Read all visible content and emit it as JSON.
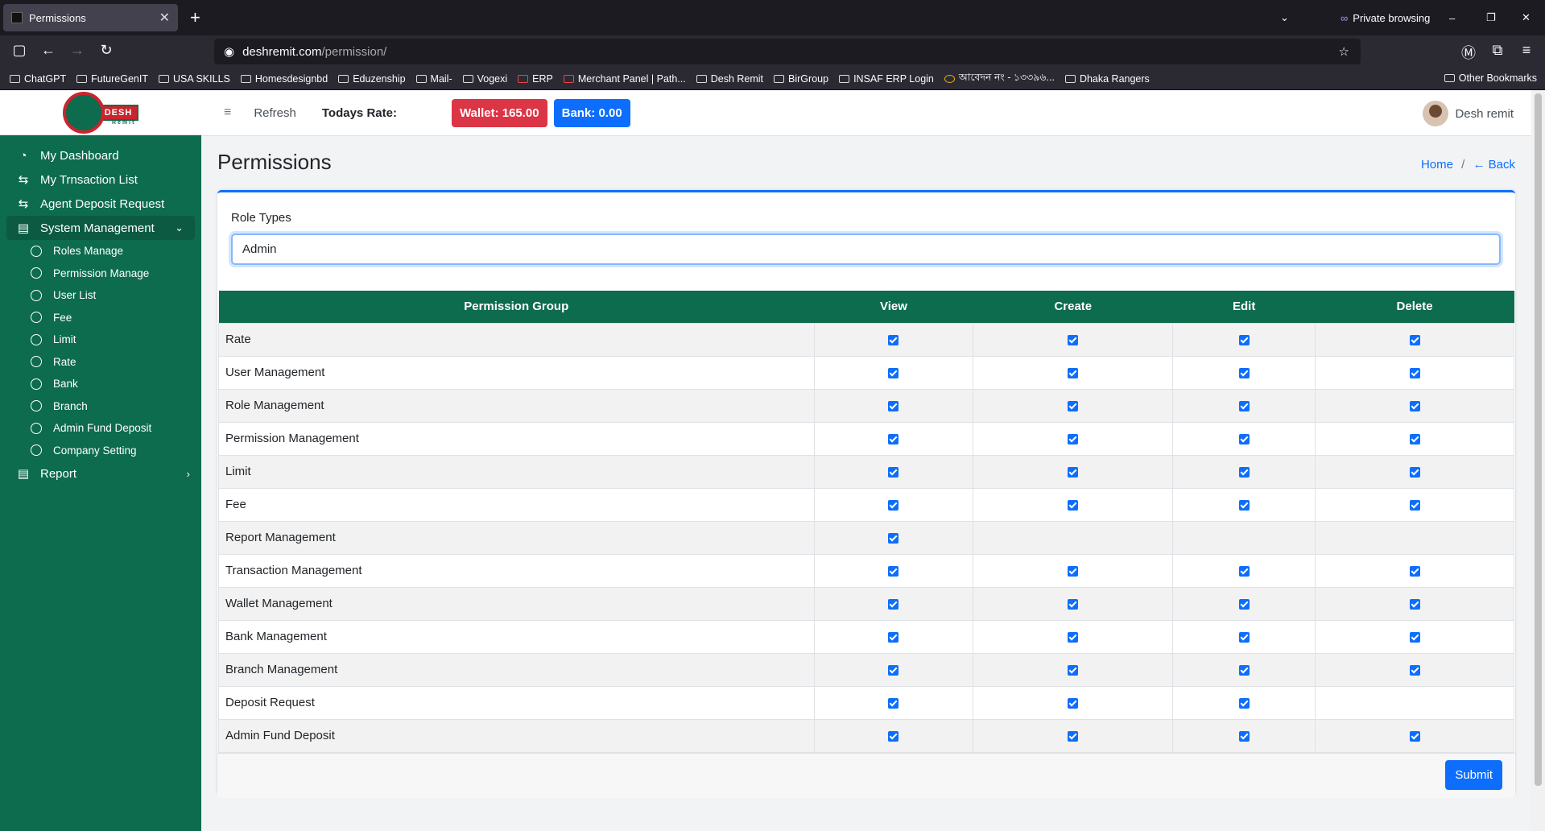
{
  "browser": {
    "tab_title": "Permissions",
    "tab_close": "✕",
    "new_tab": "+",
    "private_label": "Private browsing",
    "url_host": "deshremit.com",
    "url_path": "/permission/",
    "bookmarks": [
      "ChatGPT",
      "FutureGenIT",
      "USA SKILLS",
      "Homesdesignbd",
      "Eduzenship",
      "Mail-",
      "Vogexi",
      "ERP",
      "Merchant Panel | Path...",
      "Desh Remit",
      "BirGroup",
      "INSAF ERP Login",
      "আবেদন নং - ১৩৩৯৬...",
      "Dhaka Rangers"
    ],
    "other_bookmarks": "Other Bookmarks"
  },
  "brand": {
    "logo_text": "DESH",
    "logo_sub": "Remit"
  },
  "sidebar": {
    "items": [
      {
        "label": "My Dashboard",
        "icon": "dashboard-icon"
      },
      {
        "label": "My Trnsaction List",
        "icon": "exchange-icon"
      },
      {
        "label": "Agent Deposit Request",
        "icon": "exchange-icon"
      },
      {
        "label": "System Management",
        "icon": "clipboard-icon"
      }
    ],
    "sub_items": [
      "Roles Manage",
      "Permission Manage",
      "User List",
      "Fee",
      "Limit",
      "Rate",
      "Bank",
      "Branch",
      "Admin Fund Deposit",
      "Company Setting"
    ],
    "report": "Report"
  },
  "header": {
    "refresh": "Refresh",
    "todays_rate": "Todays Rate:",
    "wallet": "Wallet: 165.00",
    "bank": "Bank: 0.00",
    "user": "Desh remit"
  },
  "page": {
    "title": "Permissions",
    "breadcrumb_home": "Home",
    "breadcrumb_sep": "/",
    "breadcrumb_back": "← Back"
  },
  "form": {
    "role_label": "Role Types",
    "role_value": "Admin",
    "submit": "Submit"
  },
  "table": {
    "headers": [
      "Permission Group",
      "View",
      "Create",
      "Edit",
      "Delete"
    ],
    "rows": [
      {
        "group": "Rate",
        "view": true,
        "create": true,
        "edit": true,
        "delete": true
      },
      {
        "group": "User Management",
        "view": true,
        "create": true,
        "edit": true,
        "delete": true
      },
      {
        "group": "Role Management",
        "view": true,
        "create": true,
        "edit": true,
        "delete": true
      },
      {
        "group": "Permission Management",
        "view": true,
        "create": true,
        "edit": true,
        "delete": true
      },
      {
        "group": "Limit",
        "view": true,
        "create": true,
        "edit": true,
        "delete": true
      },
      {
        "group": "Fee",
        "view": true,
        "create": true,
        "edit": true,
        "delete": true
      },
      {
        "group": "Report Management",
        "view": true,
        "create": null,
        "edit": null,
        "delete": null
      },
      {
        "group": "Transaction Management",
        "view": true,
        "create": true,
        "edit": true,
        "delete": true
      },
      {
        "group": "Wallet Management",
        "view": true,
        "create": true,
        "edit": true,
        "delete": true
      },
      {
        "group": "Bank Management",
        "view": true,
        "create": true,
        "edit": true,
        "delete": true
      },
      {
        "group": "Branch Management",
        "view": true,
        "create": true,
        "edit": true,
        "delete": true
      },
      {
        "group": "Deposit Request",
        "view": true,
        "create": true,
        "edit": true,
        "delete": null
      },
      {
        "group": "Admin Fund Deposit",
        "view": true,
        "create": true,
        "edit": true,
        "delete": true
      }
    ]
  },
  "colors": {
    "primary_green": "#0d6b4e",
    "accent_blue": "#0d6efd",
    "danger_red": "#dc3545"
  }
}
